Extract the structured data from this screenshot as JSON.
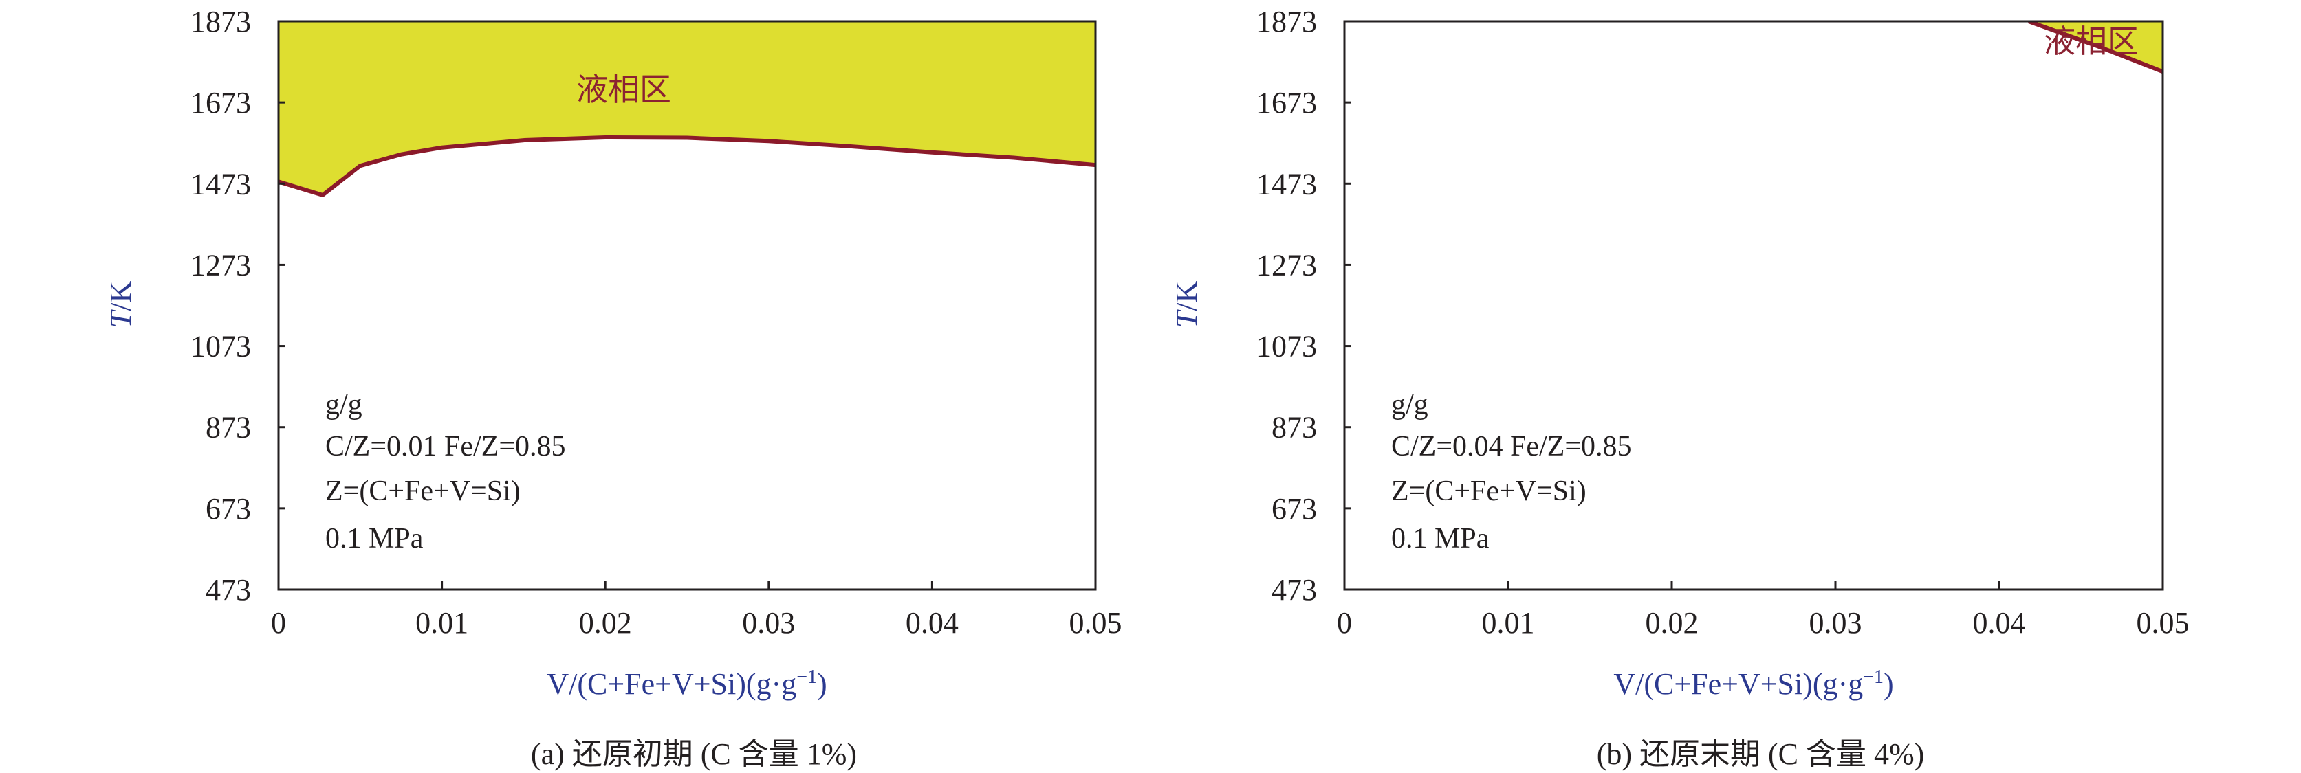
{
  "colors": {
    "liquid_fill": "#dede30",
    "boundary": "#8b1a2a",
    "axis_title": "#2b3990",
    "region_label": "#8b2232",
    "axis": "#231f20"
  },
  "chart_data": [
    {
      "type": "area",
      "caption": "(a) 还原初期 (C 含量 1%)",
      "xlabel": "V/(C+Fe+V+Si)(g·g",
      "xlabel_sup": "−1",
      "xlabel_end": ")",
      "ylabel_italic": "T",
      "ylabel_rest": "/K",
      "xlim": [
        0,
        0.05
      ],
      "ylim": [
        473,
        1873
      ],
      "xticks": [
        "0",
        "0.01",
        "0.02",
        "0.03",
        "0.04",
        "0.05"
      ],
      "yticks": [
        "473",
        "673",
        "873",
        "1073",
        "1273",
        "1473",
        "1673",
        "1873"
      ],
      "region_label": "液相区",
      "annotations": [
        "g/g",
        "C/Z=0.01  Fe/Z=0.85",
        "Z=(C+Fe+V=Si)",
        "0.1 MPa"
      ],
      "boundary": {
        "x": [
          0,
          0.0027,
          0.005,
          0.0075,
          0.01,
          0.015,
          0.02,
          0.025,
          0.03,
          0.035,
          0.04,
          0.045,
          0.05
        ],
        "y": [
          1478,
          1445,
          1517,
          1545,
          1562,
          1580,
          1587,
          1586,
          1578,
          1565,
          1550,
          1537,
          1519
        ]
      },
      "fill_region": "above"
    },
    {
      "type": "area",
      "caption": "(b) 还原末期 (C 含量 4%)",
      "xlabel": "V/(C+Fe+V+Si)(g·g",
      "xlabel_sup": "−1",
      "xlabel_end": ")",
      "ylabel_italic": "T",
      "ylabel_rest": "/K",
      "xlim": [
        0,
        0.05
      ],
      "ylim": [
        473,
        1873
      ],
      "xticks": [
        "0",
        "0.01",
        "0.02",
        "0.03",
        "0.04",
        "0.05"
      ],
      "yticks": [
        "473",
        "673",
        "873",
        "1073",
        "1273",
        "1473",
        "1673",
        "1873"
      ],
      "region_label": "液相区",
      "annotations": [
        "g/g",
        "C/Z=0.04  Fe/Z=0.85",
        "Z=(C+Fe+V=Si)",
        "0.1 MPa"
      ],
      "boundary": {
        "x": [
          0.0418,
          0.046,
          0.05
        ],
        "y": [
          1873,
          1812,
          1749
        ]
      },
      "fill_region": "above"
    }
  ]
}
